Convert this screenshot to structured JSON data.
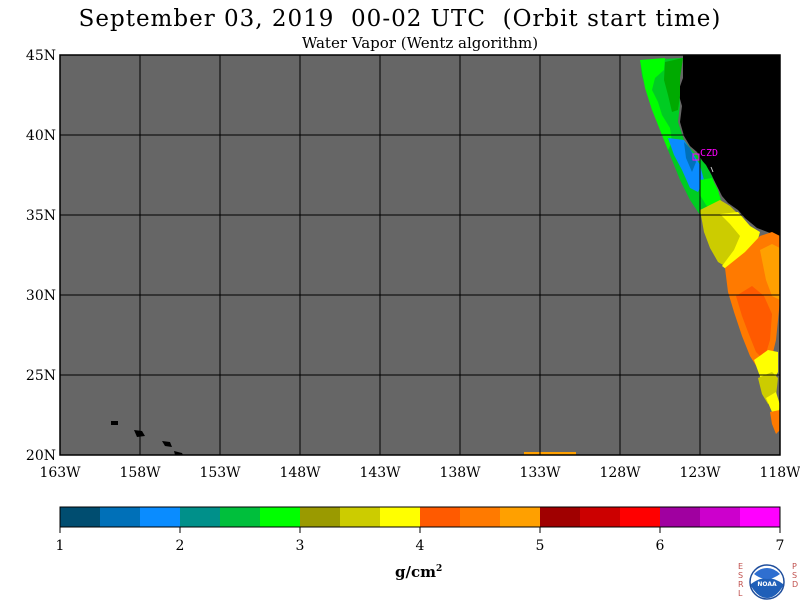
{
  "title": "September 03, 2019  00-02 UTC  (Orbit start time)",
  "subtitle": "Water Vapor (Wentz algorithm)",
  "map": {
    "lat_labels": [
      "45N",
      "40N",
      "35N",
      "30N",
      "25N",
      "20N"
    ],
    "lon_labels": [
      "163W",
      "158W",
      "153W",
      "148W",
      "143W",
      "138W",
      "133W",
      "128W",
      "123W",
      "118W"
    ],
    "lat_range": [
      20,
      45
    ],
    "lon_range": [
      -163,
      -118
    ],
    "station_label": "CZD",
    "colors": {
      "nodata": "#666666",
      "land": "#000000"
    }
  },
  "colorbar": {
    "unit_base": "g/cm",
    "unit_exp": "2",
    "tick_labels": [
      "1",
      "2",
      "3",
      "4",
      "5",
      "6",
      "7"
    ],
    "colors": [
      "#004d70",
      "#0070b8",
      "#0a8cff",
      "#00908a",
      "#00bf3c",
      "#00ff00",
      "#9a9a00",
      "#cccc00",
      "#ffff00",
      "#ff5a00",
      "#ff7a00",
      "#ffa000",
      "#a00000",
      "#cc0000",
      "#ff0000",
      "#a000a0",
      "#cc00cc",
      "#ff00ff"
    ]
  },
  "logo": {
    "left_letters": [
      "E",
      "S",
      "R",
      "L"
    ],
    "right_letters": [
      "P",
      "S",
      "D"
    ],
    "text": "NOAA"
  }
}
